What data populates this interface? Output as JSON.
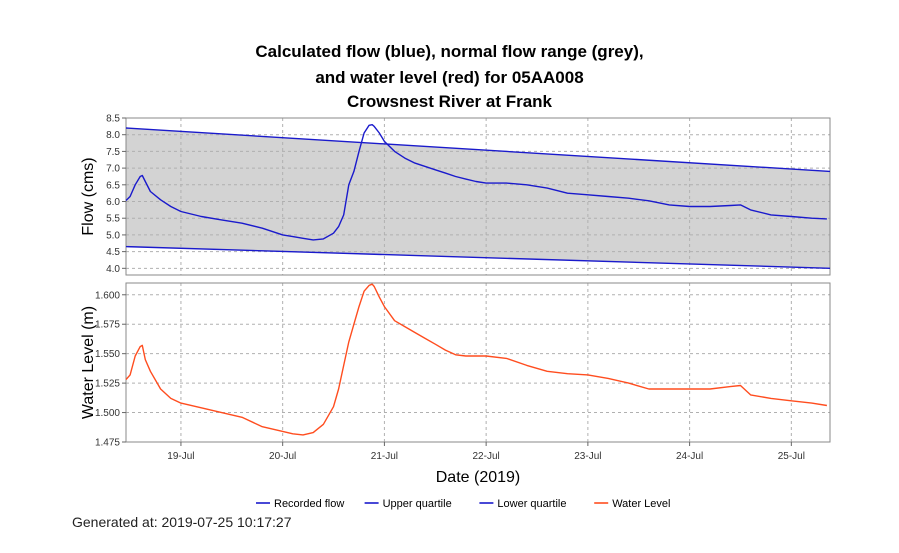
{
  "title_lines": [
    "Calculated flow (blue), normal flow range (grey),",
    "and water level (red) for 05AA008",
    "Crowsnest River at Frank"
  ],
  "footer": {
    "generated": "Generated at: 2019-07-25 10:17:27"
  },
  "colors": {
    "flow": "#1a1acc",
    "quartile": "#1a1acc",
    "level": "#ff4d1f",
    "range_fill": "#d3d3d3",
    "grid": "#b0b0b0"
  },
  "chart_data": [
    {
      "type": "line",
      "ylabel": "Flow (cms)",
      "ylim": [
        3.8,
        8.5
      ],
      "yticks": [
        "8.5",
        "8.0",
        "7.5",
        "7.0",
        "6.5",
        "6.0",
        "5.5",
        "5.0",
        "4.5",
        "4.0"
      ],
      "xlim": [
        18.46,
        25.38
      ],
      "grid": true,
      "series": [
        {
          "name": "Recorded flow",
          "x": [
            18.46,
            18.5,
            18.55,
            18.6,
            18.62,
            18.65,
            18.7,
            18.8,
            18.9,
            19.0,
            19.2,
            19.4,
            19.6,
            19.8,
            20.0,
            20.1,
            20.2,
            20.3,
            20.4,
            20.5,
            20.55,
            20.6,
            20.65,
            20.7,
            20.75,
            20.8,
            20.85,
            20.88,
            20.9,
            20.95,
            21.0,
            21.1,
            21.2,
            21.3,
            21.4,
            21.5,
            21.6,
            21.7,
            21.8,
            21.9,
            22.0,
            22.2,
            22.4,
            22.6,
            22.8,
            23.0,
            23.2,
            23.4,
            23.6,
            23.8,
            24.0,
            24.2,
            24.4,
            24.5,
            24.6,
            24.8,
            25.0,
            25.2,
            25.35
          ],
          "y": [
            6.03,
            6.15,
            6.5,
            6.75,
            6.78,
            6.6,
            6.3,
            6.05,
            5.85,
            5.7,
            5.55,
            5.45,
            5.35,
            5.2,
            5.0,
            4.95,
            4.9,
            4.85,
            4.88,
            5.05,
            5.25,
            5.6,
            6.5,
            6.9,
            7.5,
            8.05,
            8.28,
            8.3,
            8.25,
            8.05,
            7.8,
            7.5,
            7.3,
            7.15,
            7.05,
            6.95,
            6.85,
            6.75,
            6.67,
            6.6,
            6.55,
            6.55,
            6.5,
            6.4,
            6.25,
            6.2,
            6.15,
            6.1,
            6.02,
            5.9,
            5.85,
            5.85,
            5.88,
            5.9,
            5.75,
            5.6,
            5.55,
            5.5,
            5.48
          ]
        },
        {
          "name": "Upper quartile",
          "x": [
            18.46,
            25.38
          ],
          "y": [
            8.2,
            6.9
          ]
        },
        {
          "name": "Lower quartile",
          "x": [
            18.46,
            25.38
          ],
          "y": [
            4.65,
            4.0
          ]
        }
      ]
    },
    {
      "type": "line",
      "ylabel": "Water Level (m)",
      "xlabel": "Date (2019)",
      "ylim": [
        1.475,
        1.61
      ],
      "yticks": [
        "1.600",
        "1.575",
        "1.550",
        "1.525",
        "1.500",
        "1.475"
      ],
      "xticks": [
        {
          "x": 19,
          "label": "19-Jul"
        },
        {
          "x": 20,
          "label": "20-Jul"
        },
        {
          "x": 21,
          "label": "21-Jul"
        },
        {
          "x": 22,
          "label": "22-Jul"
        },
        {
          "x": 23,
          "label": "23-Jul"
        },
        {
          "x": 24,
          "label": "24-Jul"
        },
        {
          "x": 25,
          "label": "25-Jul"
        }
      ],
      "xlim": [
        18.46,
        25.38
      ],
      "grid": true,
      "series": [
        {
          "name": "Water Level",
          "x": [
            18.46,
            18.5,
            18.55,
            18.6,
            18.62,
            18.65,
            18.7,
            18.8,
            18.9,
            19.0,
            19.2,
            19.4,
            19.6,
            19.8,
            20.0,
            20.1,
            20.2,
            20.3,
            20.4,
            20.5,
            20.55,
            20.6,
            20.65,
            20.7,
            20.75,
            20.8,
            20.85,
            20.88,
            20.9,
            20.95,
            21.0,
            21.1,
            21.2,
            21.3,
            21.4,
            21.5,
            21.6,
            21.7,
            21.8,
            21.9,
            22.0,
            22.2,
            22.4,
            22.6,
            22.8,
            23.0,
            23.2,
            23.4,
            23.6,
            23.8,
            24.0,
            24.2,
            24.4,
            24.5,
            24.6,
            24.8,
            25.0,
            25.2,
            25.35
          ],
          "y": [
            1.528,
            1.532,
            1.548,
            1.556,
            1.557,
            1.545,
            1.535,
            1.52,
            1.512,
            1.508,
            1.504,
            1.5,
            1.496,
            1.488,
            1.484,
            1.482,
            1.481,
            1.483,
            1.49,
            1.505,
            1.52,
            1.54,
            1.56,
            1.575,
            1.59,
            1.603,
            1.608,
            1.609,
            1.607,
            1.598,
            1.59,
            1.578,
            1.573,
            1.568,
            1.563,
            1.558,
            1.553,
            1.549,
            1.548,
            1.548,
            1.548,
            1.546,
            1.54,
            1.535,
            1.533,
            1.532,
            1.529,
            1.525,
            1.52,
            1.52,
            1.52,
            1.52,
            1.522,
            1.523,
            1.515,
            1.512,
            1.51,
            1.508,
            1.506
          ]
        }
      ]
    }
  ],
  "legend": {
    "placement": "bottom",
    "items": [
      {
        "label": "Recorded flow",
        "color": "#1a1acc"
      },
      {
        "label": "Upper quartile",
        "color": "#1a1acc"
      },
      {
        "label": "Lower quartile",
        "color": "#1a1acc"
      },
      {
        "label": "Water Level",
        "color": "#ff4d1f"
      }
    ]
  }
}
